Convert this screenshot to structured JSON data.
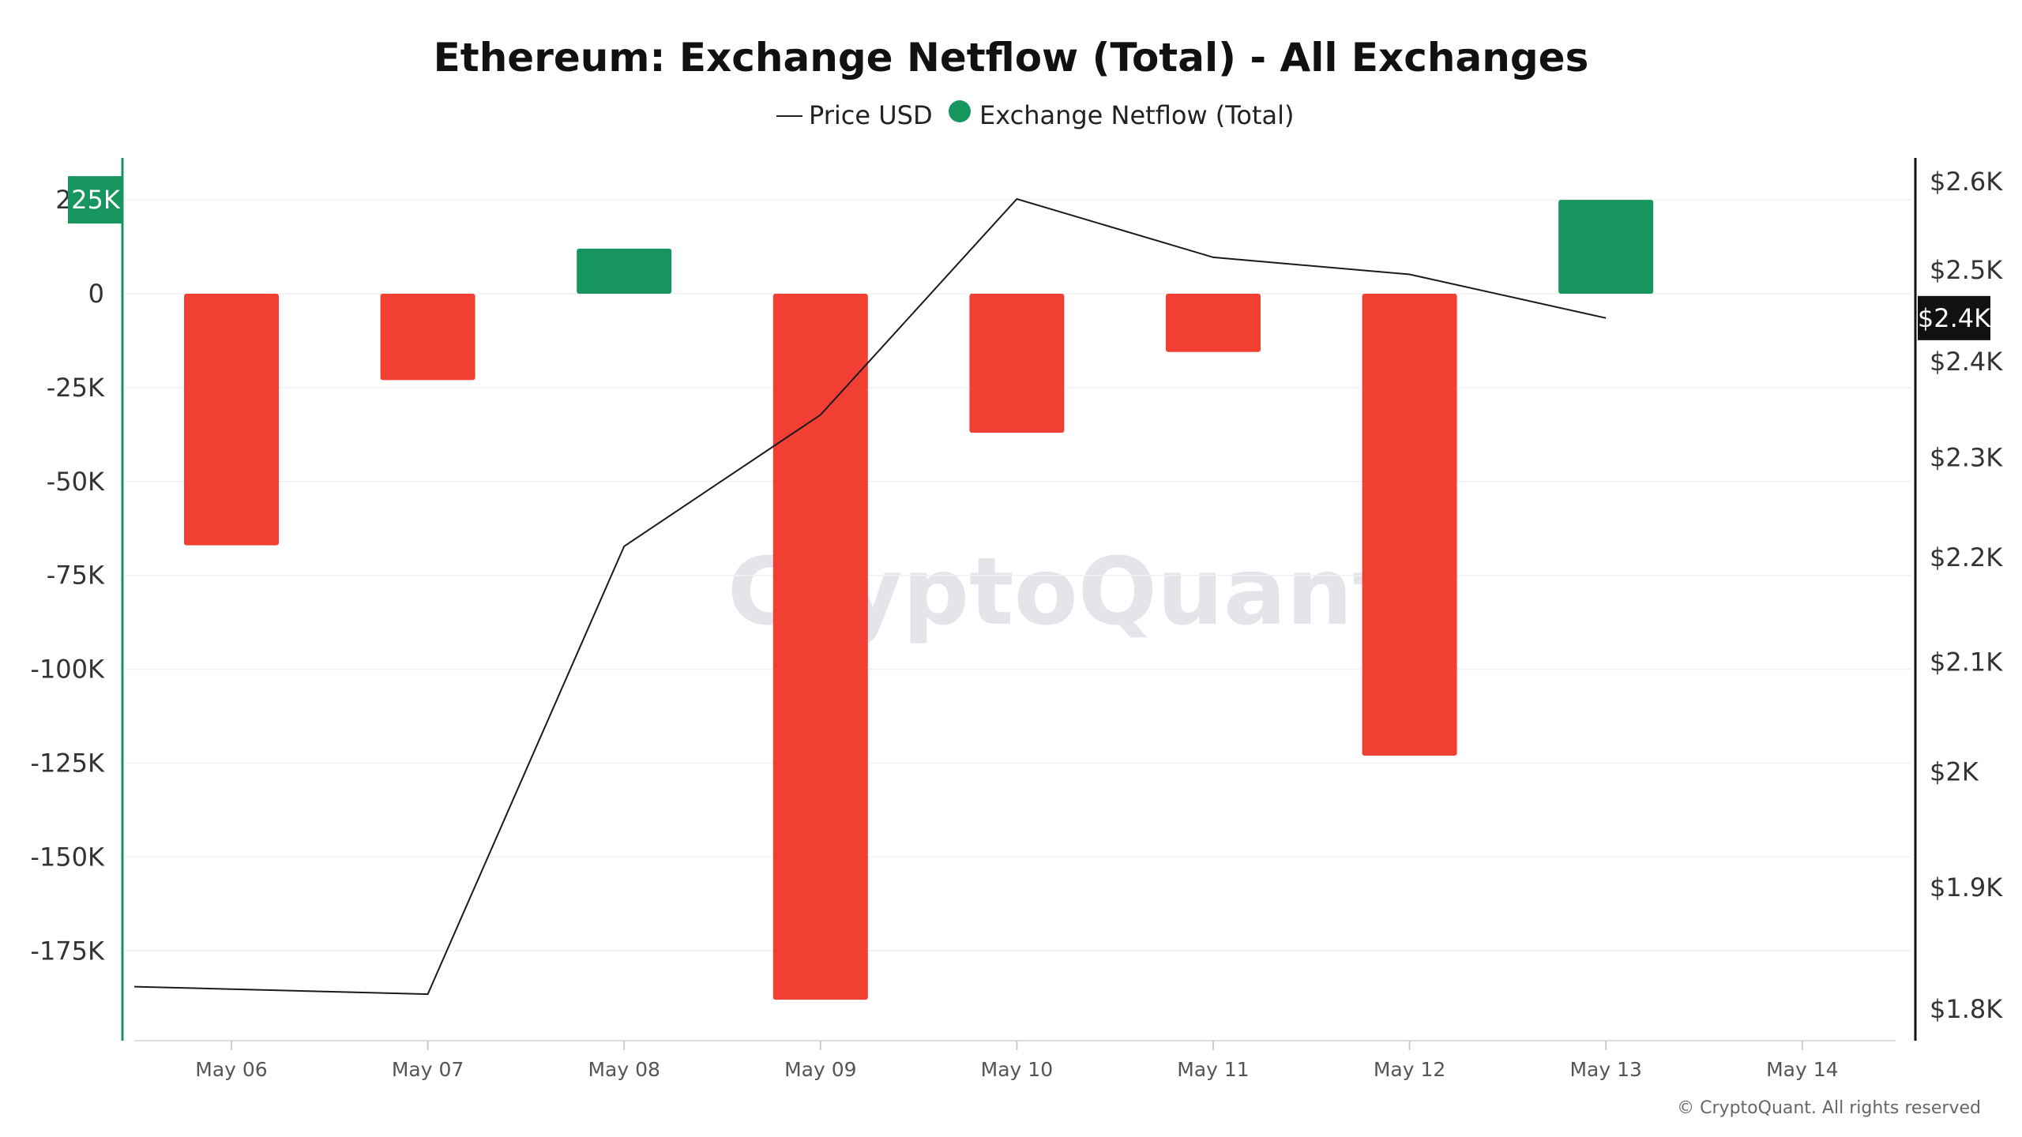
{
  "chart_data": {
    "type": "bar",
    "title": "Ethereum: Exchange Netflow (Total) - All Exchanges",
    "legend": [
      {
        "label": "Price USD",
        "marker": "line",
        "color": "#222222"
      },
      {
        "label": "Exchange Netflow (Total)",
        "marker": "dot",
        "color": "#16955f"
      }
    ],
    "legend_position": "top-center",
    "categories": [
      "May 06",
      "May 07",
      "May 08",
      "May 09",
      "May 10",
      "May 11",
      "May 12",
      "May 13",
      "May 14"
    ],
    "series": [
      {
        "name": "Exchange Netflow (Total)",
        "type": "bar",
        "axis": "left",
        "values": [
          -67000,
          -23000,
          12000,
          -188000,
          -37000,
          -15500,
          -123000,
          25000,
          null
        ],
        "positive_color": "#16955f",
        "negative_color": "#f23f33"
      },
      {
        "name": "Price USD",
        "type": "line",
        "axis": "right",
        "values": [
          1818,
          1812,
          2211,
          2344,
          2580,
          2514,
          2495,
          2447,
          null
        ],
        "color": "#1a1a1a"
      }
    ],
    "y_left": {
      "ticks": [
        25000,
        0,
        -25000,
        -50000,
        -75000,
        -100000,
        -125000,
        -150000,
        -175000
      ],
      "tick_labels": [
        "25K",
        "0",
        "-25K",
        "-50K",
        "-75K",
        "-100K",
        "-125K",
        "-150K",
        "-175K"
      ],
      "range": [
        -198000,
        25000
      ],
      "axis_color": "#16955f",
      "highlight_label": "25K"
    },
    "y_right": {
      "ticks": [
        2600,
        2500,
        2400,
        2300,
        2200,
        2100,
        2000,
        1900,
        1800
      ],
      "tick_labels": [
        "$2.6K",
        "$2.5K",
        "$2.4K",
        "$2.3K",
        "$2.2K",
        "$2.1K",
        "$2K",
        "$1.9K",
        "$1.8K"
      ],
      "scale": "log",
      "axis_color": "#111111",
      "current_value_label": "$2.4K",
      "current_value": 2447
    },
    "grid": "horizontal",
    "watermark": "CryptoQuant",
    "copyright": "© CryptoQuant. All rights reserved"
  }
}
